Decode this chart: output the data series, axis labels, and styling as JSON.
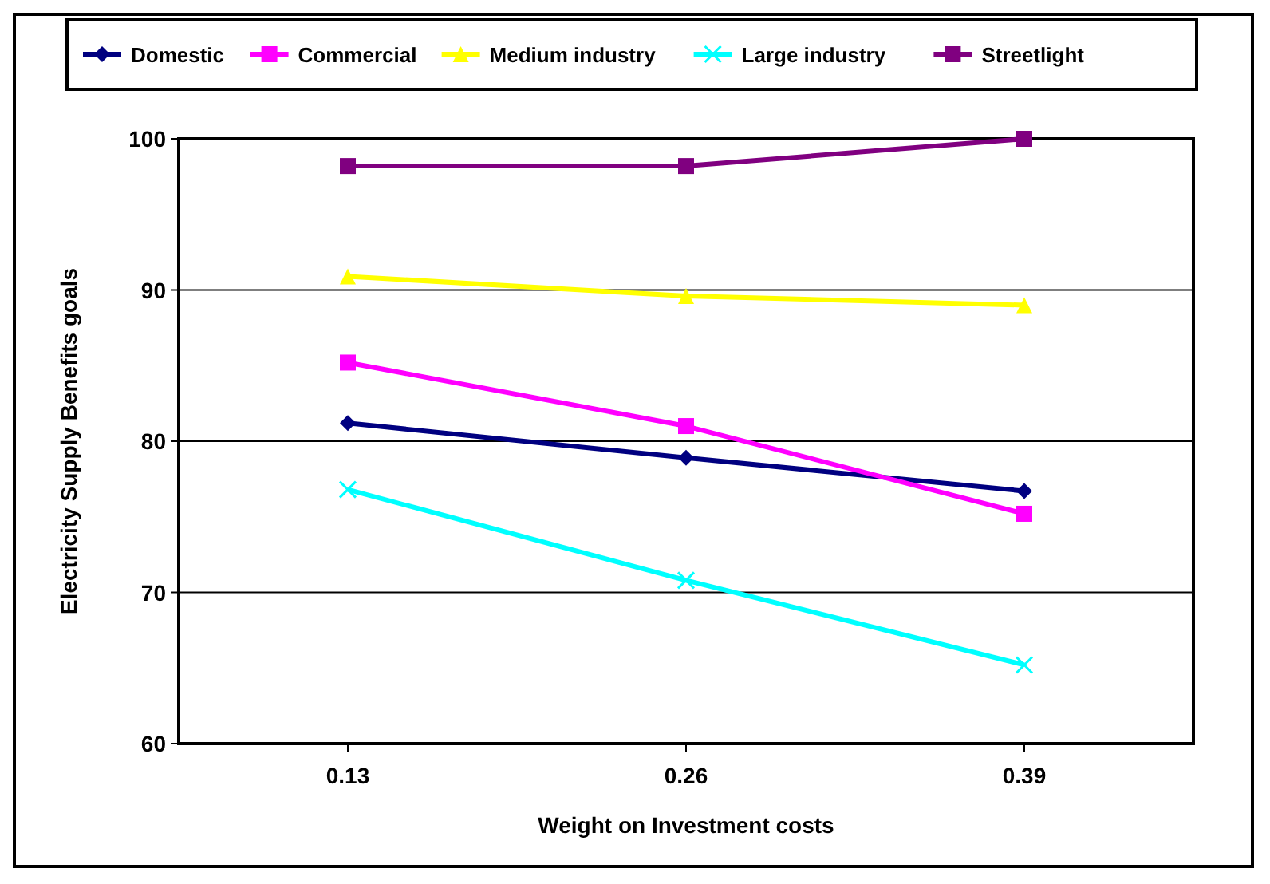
{
  "chart_data": {
    "type": "line",
    "xlabel": "Weight on Investment costs",
    "ylabel": "Electricity Supply Benefits goals",
    "categories": [
      "0.13",
      "0.26",
      "0.39"
    ],
    "series": [
      {
        "name": "Domestic",
        "color": "#000080",
        "marker": "diamond",
        "values": [
          81.2,
          78.9,
          76.7
        ]
      },
      {
        "name": "Commercial",
        "color": "#ff00ff",
        "marker": "square",
        "values": [
          85.2,
          81.0,
          75.2
        ]
      },
      {
        "name": "Medium industry",
        "color": "#ffff00",
        "marker": "triangle",
        "values": [
          90.9,
          89.6,
          89.0
        ]
      },
      {
        "name": "Large industry",
        "color": "#00ffff",
        "marker": "cross",
        "values": [
          76.8,
          70.8,
          65.2
        ]
      },
      {
        "name": "Streetlight",
        "color": "#800080",
        "marker": "square",
        "values": [
          98.2,
          98.2,
          100
        ]
      }
    ],
    "ylim": [
      60,
      100
    ],
    "yticks": [
      60,
      70,
      80,
      90,
      100
    ],
    "grid": "y",
    "legend": "top"
  }
}
